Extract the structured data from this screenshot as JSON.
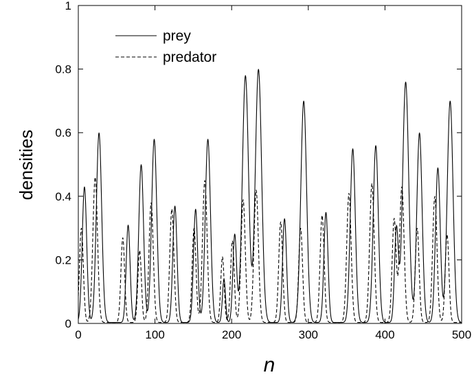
{
  "chart_data": {
    "type": "line",
    "title": "",
    "xlabel": "n",
    "ylabel": "densities",
    "xlim": [
      0,
      500
    ],
    "ylim": [
      0,
      1
    ],
    "x_ticks": [
      "0",
      "100",
      "200",
      "300",
      "400",
      "500"
    ],
    "y_ticks": [
      "0",
      "0.2",
      "0.4",
      "0.6",
      "0.8",
      "1"
    ],
    "grid": false,
    "legend_position": "top-left",
    "series": [
      {
        "name": "prey",
        "line_style": "solid",
        "color": "#000000",
        "peaks": [
          {
            "x": 8,
            "y": 0.43
          },
          {
            "x": 27,
            "y": 0.6
          },
          {
            "x": 65,
            "y": 0.31
          },
          {
            "x": 82,
            "y": 0.5
          },
          {
            "x": 99,
            "y": 0.58
          },
          {
            "x": 126,
            "y": 0.37
          },
          {
            "x": 153,
            "y": 0.36
          },
          {
            "x": 169,
            "y": 0.58
          },
          {
            "x": 190,
            "y": 0.14
          },
          {
            "x": 204,
            "y": 0.28
          },
          {
            "x": 218,
            "y": 0.78
          },
          {
            "x": 235,
            "y": 0.8
          },
          {
            "x": 269,
            "y": 0.33
          },
          {
            "x": 294,
            "y": 0.7
          },
          {
            "x": 323,
            "y": 0.35
          },
          {
            "x": 358,
            "y": 0.55
          },
          {
            "x": 388,
            "y": 0.56
          },
          {
            "x": 415,
            "y": 0.3
          },
          {
            "x": 427,
            "y": 0.76
          },
          {
            "x": 445,
            "y": 0.6
          },
          {
            "x": 469,
            "y": 0.49
          },
          {
            "x": 485,
            "y": 0.7
          }
        ]
      },
      {
        "name": "predator",
        "line_style": "dashed",
        "color": "#000000",
        "peaks": [
          {
            "x": 4,
            "y": 0.3
          },
          {
            "x": 22,
            "y": 0.46
          },
          {
            "x": 58,
            "y": 0.27
          },
          {
            "x": 80,
            "y": 0.23
          },
          {
            "x": 95,
            "y": 0.38
          },
          {
            "x": 122,
            "y": 0.36
          },
          {
            "x": 151,
            "y": 0.3
          },
          {
            "x": 165,
            "y": 0.45
          },
          {
            "x": 188,
            "y": 0.21
          },
          {
            "x": 201,
            "y": 0.26
          },
          {
            "x": 215,
            "y": 0.39
          },
          {
            "x": 232,
            "y": 0.42
          },
          {
            "x": 264,
            "y": 0.32
          },
          {
            "x": 290,
            "y": 0.3
          },
          {
            "x": 318,
            "y": 0.34
          },
          {
            "x": 353,
            "y": 0.41
          },
          {
            "x": 383,
            "y": 0.44
          },
          {
            "x": 412,
            "y": 0.33
          },
          {
            "x": 422,
            "y": 0.43
          },
          {
            "x": 442,
            "y": 0.3
          },
          {
            "x": 465,
            "y": 0.4
          },
          {
            "x": 481,
            "y": 0.28
          }
        ]
      }
    ]
  }
}
